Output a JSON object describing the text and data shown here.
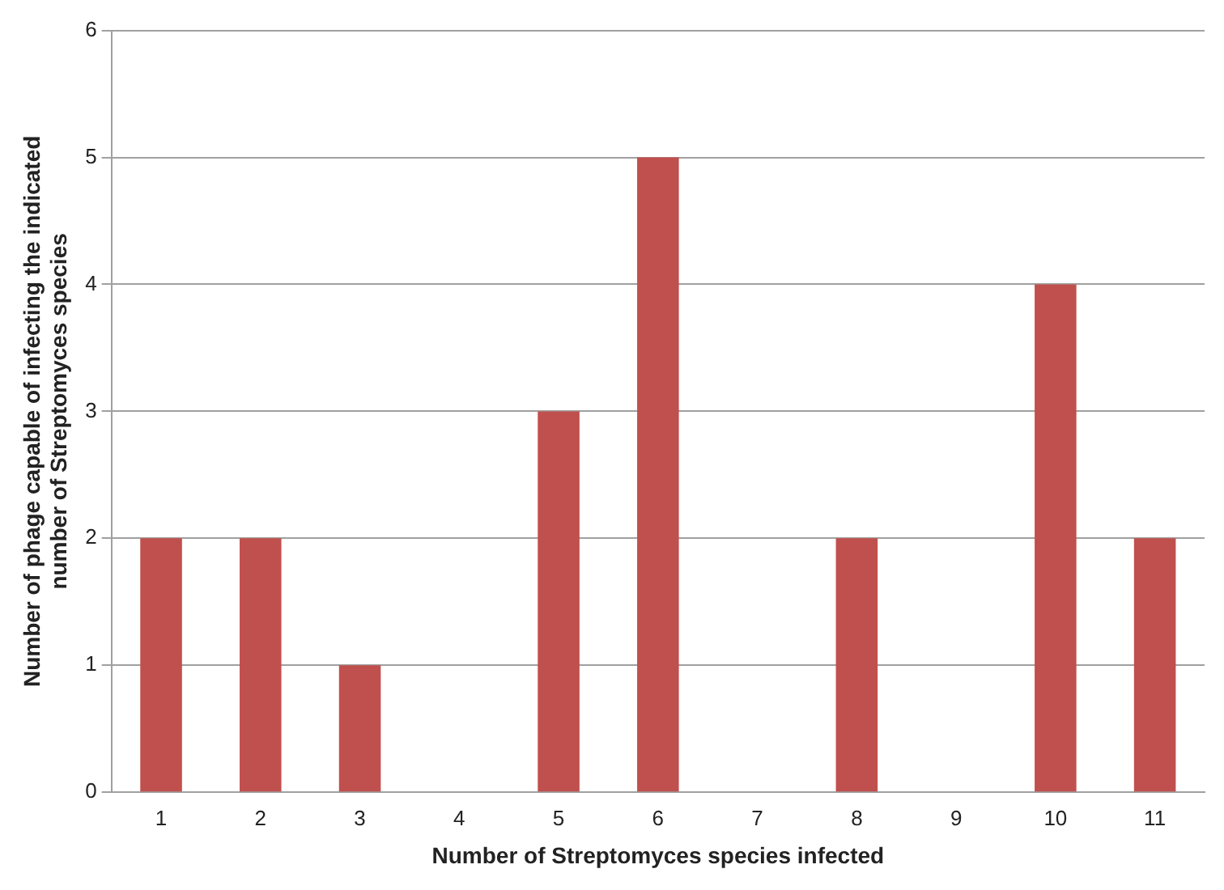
{
  "chart_data": {
    "type": "bar",
    "xlabel": "Number of Streptomyces species infected",
    "ylabel": "Number of phage capable of infecting the indicated number of Streptomyces species",
    "categories": [
      "1",
      "2",
      "3",
      "4",
      "5",
      "6",
      "7",
      "8",
      "9",
      "10",
      "11"
    ],
    "values": [
      2,
      2,
      1,
      0,
      3,
      5,
      0,
      2,
      0,
      4,
      2
    ],
    "color": "#c0504d",
    "ylim": [
      0,
      6
    ],
    "yticks": [
      0,
      1,
      2,
      3,
      4,
      5,
      6
    ],
    "grid": "y",
    "legend": false
  }
}
